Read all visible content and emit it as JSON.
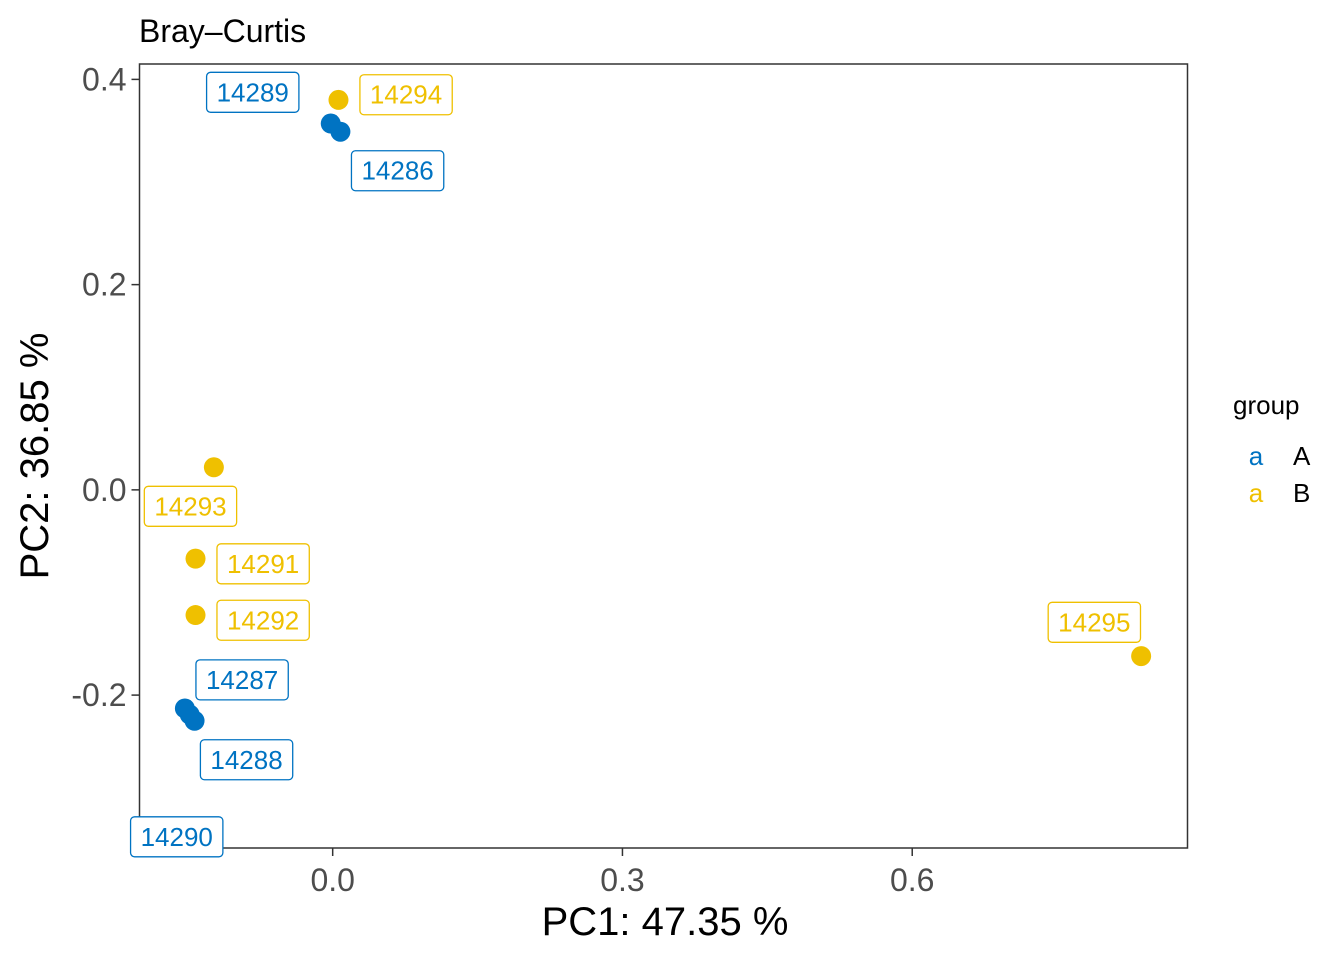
{
  "chart_data": {
    "type": "scatter",
    "title": "Bray–Curtis",
    "xlabel": "PC1: 47.35 %",
    "ylabel": "PC2: 36.85 %",
    "xlim": [
      -0.2,
      0.885
    ],
    "ylim": [
      -0.349,
      0.415
    ],
    "xticks": [
      {
        "value": 0.0,
        "label": "0.0"
      },
      {
        "value": 0.3,
        "label": "0.3"
      },
      {
        "value": 0.6,
        "label": "0.6"
      }
    ],
    "yticks": [
      {
        "value": 0.4,
        "label": "0.4"
      },
      {
        "value": 0.2,
        "label": "0.2"
      },
      {
        "value": 0.0,
        "label": "0.0"
      },
      {
        "value": -0.2,
        "label": "-0.2"
      }
    ],
    "grid": false,
    "legend": {
      "title": "group",
      "placement": "right",
      "key_glyph": "a",
      "items": [
        {
          "name": "A",
          "color": "#0073C2"
        },
        {
          "name": "B",
          "color": "#EFC000"
        }
      ]
    },
    "series": [
      {
        "name": "A",
        "color": "#0073C2",
        "points": [
          {
            "id": "14289",
            "x": -0.002,
            "y": 0.357,
            "label_dx": -3.0,
            "label_dy": 1.2
          },
          {
            "id": "14286",
            "x": 0.008,
            "y": 0.349,
            "label_dx": 2.2,
            "label_dy": -1.5
          },
          {
            "id": "14287",
            "x": -0.153,
            "y": -0.213,
            "label_dx": 2.2,
            "label_dy": 1.1
          },
          {
            "id": "14288",
            "x": -0.143,
            "y": -0.225,
            "label_dx": 2.0,
            "label_dy": -1.5
          },
          {
            "id": "14290",
            "x": -0.148,
            "y": -0.219,
            "label_dx": -0.5,
            "label_dy": -4.7
          }
        ]
      },
      {
        "name": "B",
        "color": "#EFC000",
        "points": [
          {
            "id": "14294",
            "x": 0.006,
            "y": 0.38,
            "label_dx": 2.6,
            "label_dy": 0.2
          },
          {
            "id": "14293",
            "x": -0.123,
            "y": 0.022,
            "label_dx": -0.9,
            "label_dy": -1.5
          },
          {
            "id": "14291",
            "x": -0.142,
            "y": -0.067,
            "label_dx": 2.6,
            "label_dy": -0.2
          },
          {
            "id": "14292",
            "x": -0.142,
            "y": -0.122,
            "label_dx": 2.6,
            "label_dy": -0.2
          },
          {
            "id": "14295",
            "x": 0.837,
            "y": -0.162,
            "label_dx": -1.8,
            "label_dy": 1.3
          }
        ]
      }
    ]
  }
}
